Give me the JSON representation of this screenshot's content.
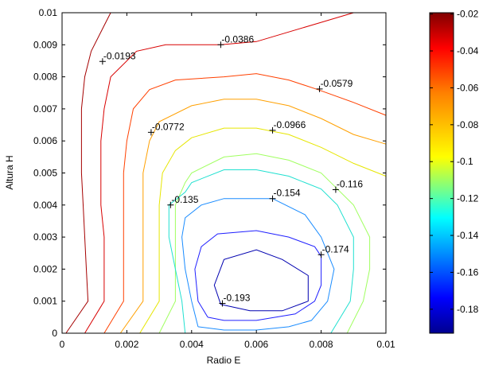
{
  "chart_data": {
    "type": "contour",
    "title": "",
    "xlabel": "Radio E",
    "ylabel": "Altura H",
    "xlim": [
      0,
      0.01
    ],
    "ylim": [
      0,
      0.01
    ],
    "x_ticks": [
      "0",
      "0.002",
      "0.004",
      "0.006",
      "0.008",
      "0.01"
    ],
    "y_ticks": [
      "0",
      "0.001",
      "0.002",
      "0.003",
      "0.004",
      "0.005",
      "0.006",
      "0.007",
      "0.008",
      "0.009",
      "0.01"
    ],
    "colormap": "jet",
    "colorbar": {
      "range": [
        -0.193,
        -0.0193
      ],
      "ticks": [
        "-0.02",
        "-0.04",
        "-0.06",
        "-0.08",
        "-0.1",
        "-0.12",
        "-0.14",
        "-0.16",
        "-0.18"
      ],
      "tick_values": [
        -0.02,
        -0.04,
        -0.06,
        -0.08,
        -0.1,
        -0.12,
        -0.14,
        -0.16,
        -0.18
      ]
    },
    "levels": [
      {
        "value": -0.0193,
        "color": "#a50000",
        "points": [
          [
            0.00012,
            0
          ],
          [
            0.0008,
            0.001
          ],
          [
            0.00075,
            0.002
          ],
          [
            0.0007,
            0.003
          ],
          [
            0.00065,
            0.004
          ],
          [
            0.0006,
            0.005
          ],
          [
            0.0006,
            0.006
          ],
          [
            0.0006,
            0.007
          ],
          [
            0.0007,
            0.008
          ],
          [
            0.0009,
            0.0088
          ],
          [
            0.0013,
            0.0096
          ],
          [
            0.0015,
            0.01
          ]
        ]
      },
      {
        "value": -0.0386,
        "color": "#d80000",
        "points": [
          [
            0.0007,
            0
          ],
          [
            0.0013,
            0.001
          ],
          [
            0.0013,
            0.002
          ],
          [
            0.0013,
            0.003
          ],
          [
            0.0012,
            0.004
          ],
          [
            0.0012,
            0.005
          ],
          [
            0.0012,
            0.006
          ],
          [
            0.0013,
            0.007
          ],
          [
            0.0015,
            0.008
          ],
          [
            0.0023,
            0.0088
          ],
          [
            0.0032,
            0.009
          ],
          [
            0.0049,
            0.009
          ],
          [
            0.006,
            0.0091
          ],
          [
            0.007,
            0.0094
          ],
          [
            0.008,
            0.0097
          ],
          [
            0.009,
            0.01
          ]
        ]
      },
      {
        "value": -0.0579,
        "color": "#ff4000",
        "points": [
          [
            0.0013,
            0
          ],
          [
            0.0019,
            0.001
          ],
          [
            0.0019,
            0.002
          ],
          [
            0.0019,
            0.003
          ],
          [
            0.0019,
            0.004
          ],
          [
            0.0019,
            0.005
          ],
          [
            0.002,
            0.006
          ],
          [
            0.0022,
            0.007
          ],
          [
            0.0027,
            0.0076
          ],
          [
            0.0035,
            0.0079
          ],
          [
            0.005,
            0.008
          ],
          [
            0.006,
            0.0081
          ],
          [
            0.007,
            0.0079
          ],
          [
            0.0079,
            0.0076
          ],
          [
            0.009,
            0.0072
          ],
          [
            0.01,
            0.0068
          ]
        ]
      },
      {
        "value": -0.0772,
        "color": "#ffa000",
        "points": [
          [
            0.0018,
            0
          ],
          [
            0.0025,
            0.001
          ],
          [
            0.0025,
            0.002
          ],
          [
            0.0025,
            0.003
          ],
          [
            0.0025,
            0.004
          ],
          [
            0.0025,
            0.005
          ],
          [
            0.0027,
            0.006
          ],
          [
            0.003,
            0.0066
          ],
          [
            0.004,
            0.0071
          ],
          [
            0.005,
            0.0073
          ],
          [
            0.006,
            0.0073
          ],
          [
            0.007,
            0.0071
          ],
          [
            0.008,
            0.0067
          ],
          [
            0.009,
            0.0062
          ],
          [
            0.01,
            0.0059
          ]
        ]
      },
      {
        "value": -0.0966,
        "color": "#e6e600",
        "points": [
          [
            0.0024,
            0
          ],
          [
            0.003,
            0.001
          ],
          [
            0.003,
            0.002
          ],
          [
            0.003,
            0.003
          ],
          [
            0.003,
            0.004
          ],
          [
            0.0031,
            0.005
          ],
          [
            0.0035,
            0.0057
          ],
          [
            0.004,
            0.0061
          ],
          [
            0.005,
            0.0064
          ],
          [
            0.006,
            0.0064
          ],
          [
            0.0065,
            0.0063
          ],
          [
            0.007,
            0.0062
          ],
          [
            0.008,
            0.0058
          ],
          [
            0.009,
            0.0053
          ],
          [
            0.01,
            0.0049
          ]
        ]
      },
      {
        "value": -0.116,
        "color": "#a0ff60",
        "points": [
          [
            0.003,
            0
          ],
          [
            0.0035,
            0.001
          ],
          [
            0.0035,
            0.002
          ],
          [
            0.0035,
            0.003
          ],
          [
            0.0035,
            0.004
          ],
          [
            0.0038,
            0.0047
          ],
          [
            0.004,
            0.005
          ],
          [
            0.005,
            0.0055
          ],
          [
            0.006,
            0.0056
          ],
          [
            0.007,
            0.0054
          ],
          [
            0.008,
            0.005
          ],
          [
            0.0085,
            0.0045
          ],
          [
            0.009,
            0.004
          ],
          [
            0.0095,
            0.003
          ],
          [
            0.0095,
            0.002
          ],
          [
            0.0093,
            0.001
          ],
          [
            0.0088,
            0
          ]
        ]
      },
      {
        "value": -0.135,
        "color": "#20e0d0",
        "points": [
          [
            0.0038,
            0
          ],
          [
            0.0037,
            0.001
          ],
          [
            0.0035,
            0.002
          ],
          [
            0.0033,
            0.003
          ],
          [
            0.0033,
            0.004
          ],
          [
            0.0038,
            0.0044
          ],
          [
            0.004,
            0.0047
          ],
          [
            0.005,
            0.0051
          ],
          [
            0.006,
            0.0051
          ],
          [
            0.007,
            0.0049
          ],
          [
            0.008,
            0.0045
          ],
          [
            0.0085,
            0.004
          ],
          [
            0.009,
            0.003
          ],
          [
            0.009,
            0.002
          ],
          [
            0.0089,
            0.001
          ],
          [
            0.0083,
            0
          ]
        ]
      },
      {
        "value": -0.154,
        "color": "#1a8cff",
        "points": [
          [
            0.0042,
            0.0002
          ],
          [
            0.004,
            0.001
          ],
          [
            0.0038,
            0.002
          ],
          [
            0.0037,
            0.003
          ],
          [
            0.0038,
            0.0036
          ],
          [
            0.0043,
            0.004
          ],
          [
            0.005,
            0.0042
          ],
          [
            0.0065,
            0.0042
          ],
          [
            0.0075,
            0.0037
          ],
          [
            0.008,
            0.003
          ],
          [
            0.0084,
            0.002
          ],
          [
            0.0082,
            0.001
          ],
          [
            0.0077,
            0.0004
          ],
          [
            0.007,
            0.0002
          ],
          [
            0.006,
            0.0001
          ],
          [
            0.005,
            0.0001
          ],
          [
            0.0042,
            0.0002
          ]
        ]
      },
      {
        "value": -0.174,
        "color": "#2020ff",
        "points": [
          [
            0.0045,
            0.0005
          ],
          [
            0.0042,
            0.001
          ],
          [
            0.0041,
            0.002
          ],
          [
            0.0043,
            0.0027
          ],
          [
            0.0048,
            0.0031
          ],
          [
            0.006,
            0.0032
          ],
          [
            0.007,
            0.003
          ],
          [
            0.0078,
            0.0027
          ],
          [
            0.008,
            0.0024
          ],
          [
            0.008,
            0.0015
          ],
          [
            0.0078,
            0.001
          ],
          [
            0.0072,
            0.0006
          ],
          [
            0.006,
            0.0004
          ],
          [
            0.005,
            0.0004
          ],
          [
            0.0045,
            0.0005
          ]
        ]
      },
      {
        "value": -0.193,
        "color": "#0000b0",
        "points": [
          [
            0.0049,
            0.0009
          ],
          [
            0.0047,
            0.0015
          ],
          [
            0.005,
            0.0023
          ],
          [
            0.006,
            0.0026
          ],
          [
            0.0068,
            0.0023
          ],
          [
            0.0076,
            0.0018
          ],
          [
            0.0076,
            0.001
          ],
          [
            0.0068,
            0.0007
          ],
          [
            0.0058,
            0.0007
          ],
          [
            0.0049,
            0.0009
          ]
        ]
      }
    ],
    "labels": [
      {
        "text": "-0.0193",
        "x": 0.00125,
        "y": 0.00848
      },
      {
        "text": "-0.0386",
        "x": 0.0049,
        "y": 0.009
      },
      {
        "text": "-0.0579",
        "x": 0.00795,
        "y": 0.00762
      },
      {
        "text": "-0.0772",
        "x": 0.00275,
        "y": 0.00627
      },
      {
        "text": "-0.0966",
        "x": 0.0065,
        "y": 0.00633
      },
      {
        "text": "-0.116",
        "x": 0.00845,
        "y": 0.00448
      },
      {
        "text": "-0.135",
        "x": 0.00335,
        "y": 0.004
      },
      {
        "text": "-0.154",
        "x": 0.0065,
        "y": 0.0042
      },
      {
        "text": "-0.174",
        "x": 0.008,
        "y": 0.00245
      },
      {
        "text": "-0.193",
        "x": 0.00495,
        "y": 0.00093
      }
    ]
  }
}
